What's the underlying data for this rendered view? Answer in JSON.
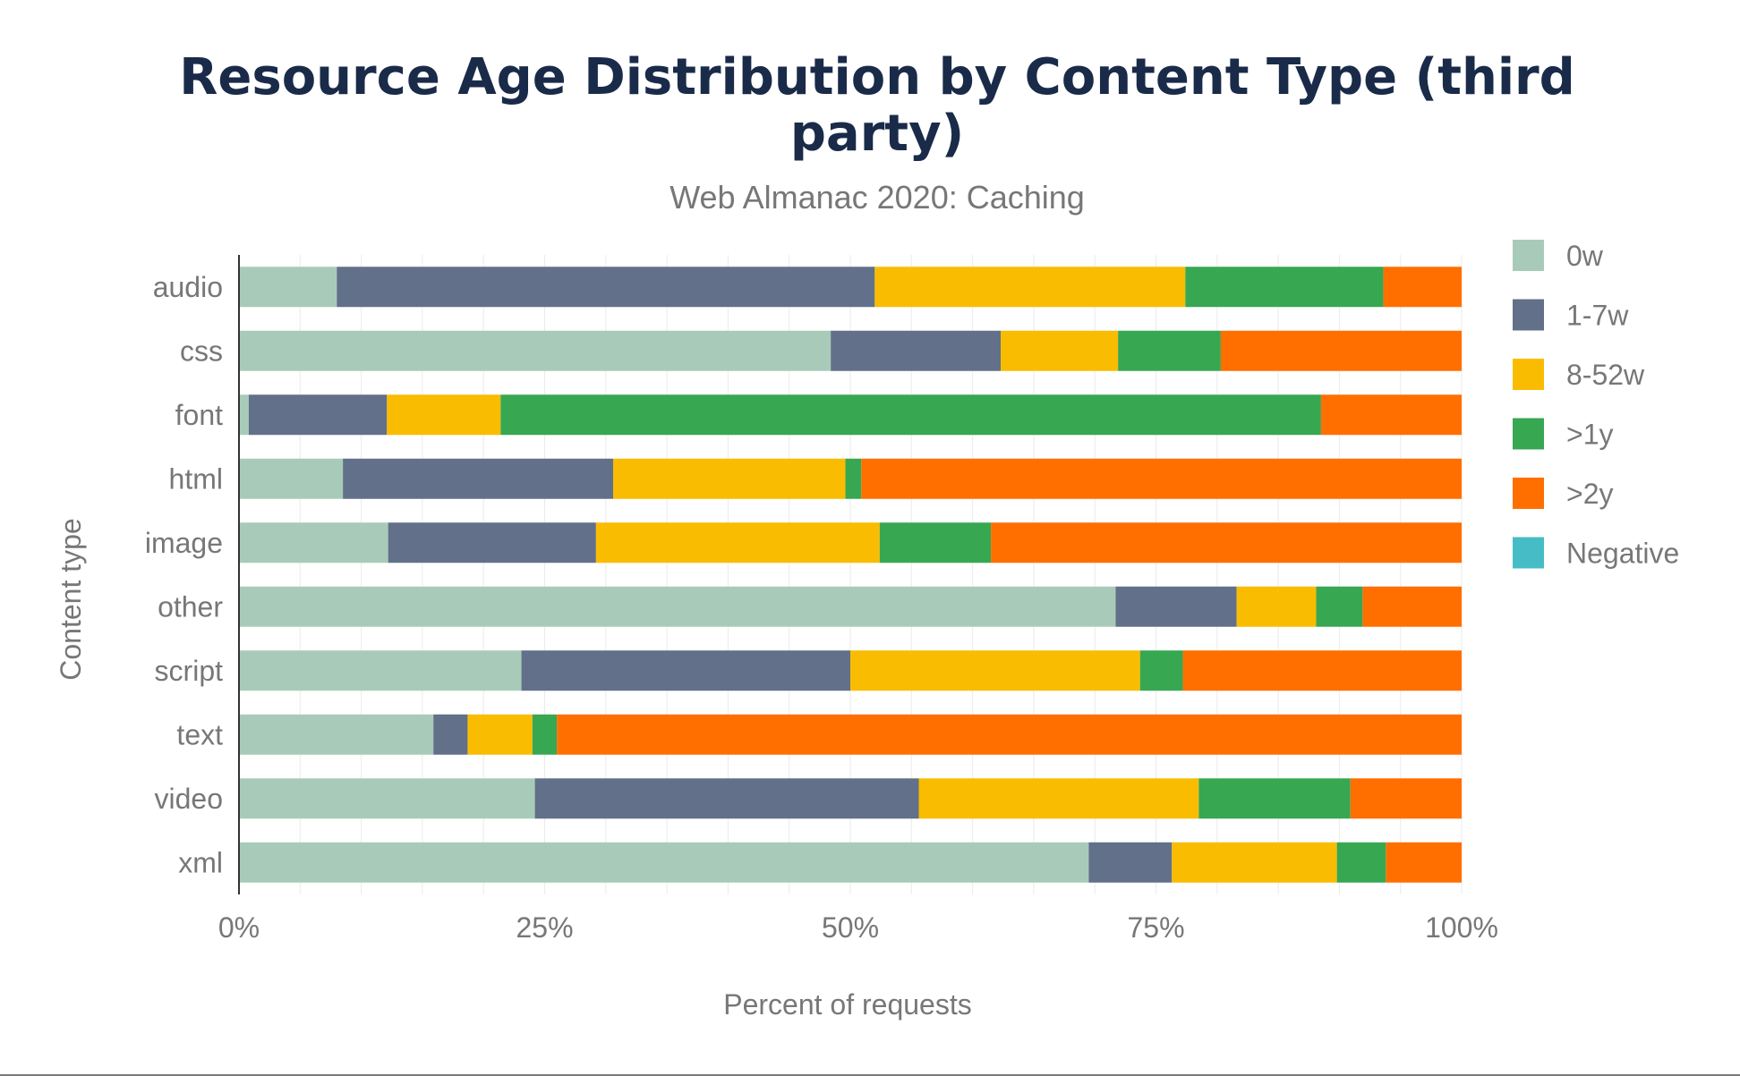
{
  "chart_data": {
    "type": "bar",
    "orientation": "horizontal",
    "stacked": true,
    "title_lines": [
      "Resource Age Distribution by Content Type (third",
      "party)"
    ],
    "subtitle": "Web Almanac 2020: Caching",
    "xlabel": "Percent of requests",
    "ylabel": "Content type",
    "xlim": [
      0,
      100
    ],
    "x_ticks": [
      {
        "value": 0,
        "label": "0%"
      },
      {
        "value": 25,
        "label": "25%"
      },
      {
        "value": 50,
        "label": "50%"
      },
      {
        "value": 75,
        "label": "75%"
      },
      {
        "value": 100,
        "label": "100%"
      }
    ],
    "grid": true,
    "legend_position": "right",
    "categories": [
      "audio",
      "css",
      "font",
      "html",
      "image",
      "other",
      "script",
      "text",
      "video",
      "xml"
    ],
    "series": [
      {
        "name": "0w",
        "color": "#a8cbb9",
        "values": [
          8.0,
          48.4,
          0.8,
          8.5,
          12.2,
          71.7,
          23.1,
          15.9,
          24.2,
          69.5
        ]
      },
      {
        "name": "1-7w",
        "color": "#627089",
        "values": [
          44.0,
          13.9,
          11.3,
          22.1,
          17.0,
          9.9,
          26.9,
          2.8,
          31.4,
          6.8
        ]
      },
      {
        "name": "8-52w",
        "color": "#f9bc00",
        "values": [
          25.4,
          9.6,
          9.3,
          19.0,
          23.2,
          6.5,
          23.7,
          5.3,
          22.9,
          13.5
        ]
      },
      {
        "name": ">1y",
        "color": "#37a752",
        "values": [
          16.2,
          8.4,
          67.1,
          1.3,
          9.1,
          3.8,
          3.5,
          2.0,
          12.4,
          4.0
        ]
      },
      {
        "name": ">2y",
        "color": "#ff6f00",
        "values": [
          6.4,
          19.7,
          11.5,
          49.1,
          38.5,
          8.1,
          22.8,
          74.0,
          9.1,
          6.2
        ]
      },
      {
        "name": "Negative",
        "color": "#46bdc6",
        "values": [
          0,
          0,
          0,
          0,
          0,
          0,
          0,
          0,
          0,
          0
        ]
      }
    ]
  }
}
